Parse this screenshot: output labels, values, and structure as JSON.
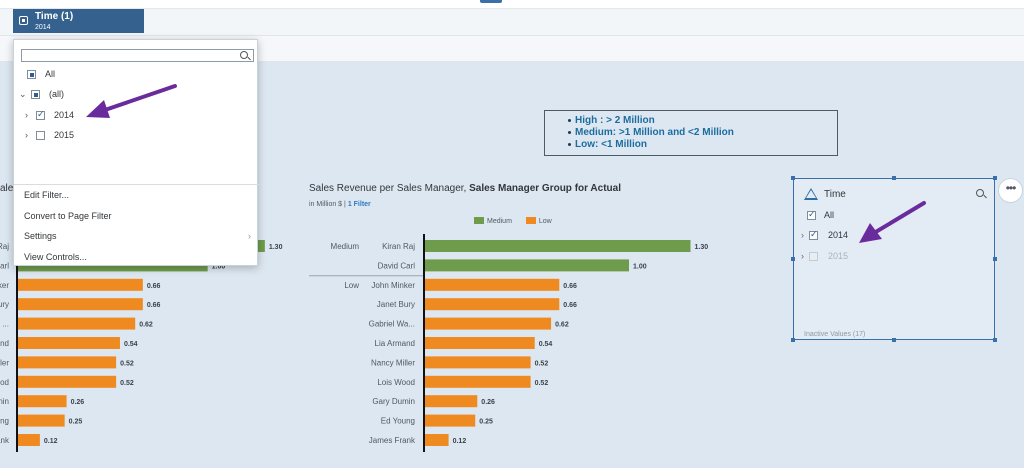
{
  "time_token": {
    "title": "Time (1)",
    "subtitle": "2014"
  },
  "dropdown": {
    "search_placeholder": "",
    "items": [
      {
        "label": "All",
        "state": "partial"
      },
      {
        "label": "(all)",
        "state": "partial",
        "expanded": true
      },
      {
        "label": "2014",
        "state": "checked"
      },
      {
        "label": "2015",
        "state": "unchecked"
      }
    ],
    "menu": [
      "Edit Filter...",
      "Convert to Page Filter",
      "Settings",
      "View Controls..."
    ]
  },
  "thresholds": [
    "High : > 2 Million",
    "Medium: >1 Million and <2 Million",
    "Low: <1 Million"
  ],
  "chart_title": {
    "main": "Sales Revenue per Sales Manager, ",
    "bold": "Sales Manager Group for Actual"
  },
  "chart_sub": {
    "unit": "in Million $",
    "sep": "|",
    "filter": "1 Filter"
  },
  "left_fragment": "ales",
  "chart_data": {
    "type": "bar",
    "orientation": "horizontal",
    "series": [
      {
        "name": "Medium",
        "color": "#6f9c4c"
      },
      {
        "name": "Low",
        "color": "#ee8a1f"
      }
    ],
    "groups": [
      {
        "label": "Medium",
        "series": "Medium",
        "managers": [
          "Kiran Raj",
          "David Carl"
        ],
        "values": [
          1.3,
          1.0
        ]
      },
      {
        "label": "Low",
        "series": "Low",
        "managers": [
          "John Minker",
          "Janet Bury",
          "Gabriel Wa...",
          "Lia Armand",
          "Nancy Miller",
          "Lois Wood",
          "Gary Dumin",
          "Ed Young",
          "James Frank"
        ],
        "values": [
          0.66,
          0.66,
          0.62,
          0.54,
          0.52,
          0.52,
          0.26,
          0.25,
          0.12
        ]
      }
    ],
    "value_labels": [
      "1.30",
      "1.00",
      "0.66",
      "0.66",
      "0.62",
      "0.54",
      "0.52",
      "0.52",
      "0.26",
      "0.25",
      "0.12"
    ],
    "left_clipped_names": [
      "Raj",
      "Carl",
      "ker",
      "ury",
      "...",
      "and",
      "ler",
      "ood",
      "nin",
      "ung",
      "ank"
    ]
  },
  "time_card": {
    "title": "Time",
    "items": [
      {
        "label": "All",
        "state": "checked"
      },
      {
        "label": "2014",
        "state": "checked"
      },
      {
        "label": "2015",
        "state": "inactive"
      }
    ],
    "inactive_label": "Inactive Values (17)"
  },
  "more_button": "•••"
}
